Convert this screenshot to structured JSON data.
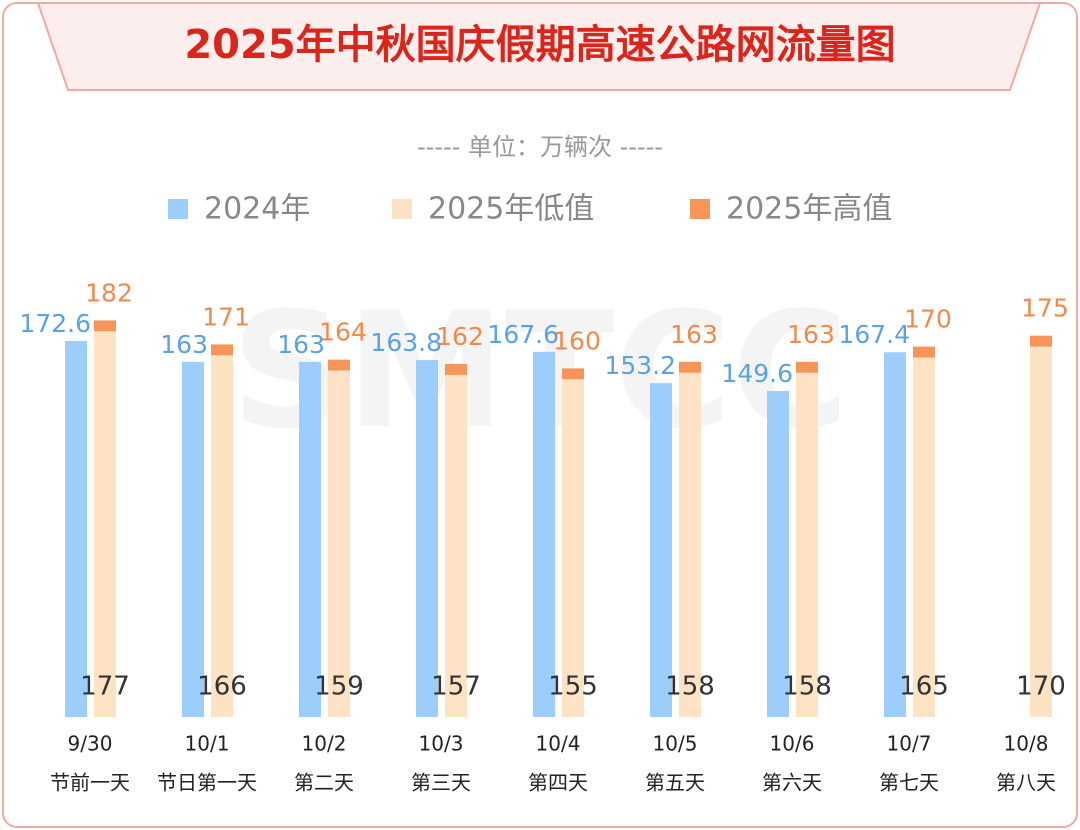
{
  "chart_data": {
    "type": "grouped_range_bar",
    "title": "2025年中秋国庆假期高速公路网流量图",
    "subtitle": "----- 单位：万辆次 -----",
    "watermark": "SMTCC",
    "categories": [
      "9/30",
      "10/1",
      "10/2",
      "10/3",
      "10/4",
      "10/5",
      "10/6",
      "10/7",
      "10/8"
    ],
    "day_labels": [
      "节前一天",
      "节日第一天",
      "第二天",
      "第三天",
      "第四天",
      "第五天",
      "第六天",
      "第七天",
      "第八天"
    ],
    "series": [
      {
        "name": "2024年",
        "color": "#9ccdfb",
        "values": [
          172.6,
          163,
          163,
          163.8,
          167.6,
          153.2,
          149.6,
          167.4,
          null
        ]
      },
      {
        "name": "2025年低值",
        "color": "#fde3c4",
        "values": [
          177,
          166,
          159,
          157,
          155,
          158,
          158,
          165,
          170
        ]
      },
      {
        "name": "2025年高值",
        "color": "#f5955a",
        "values": [
          182,
          171,
          164,
          162,
          160,
          163,
          163,
          170,
          175
        ]
      }
    ],
    "ylim": [
      0,
      190
    ],
    "legend": "top"
  }
}
